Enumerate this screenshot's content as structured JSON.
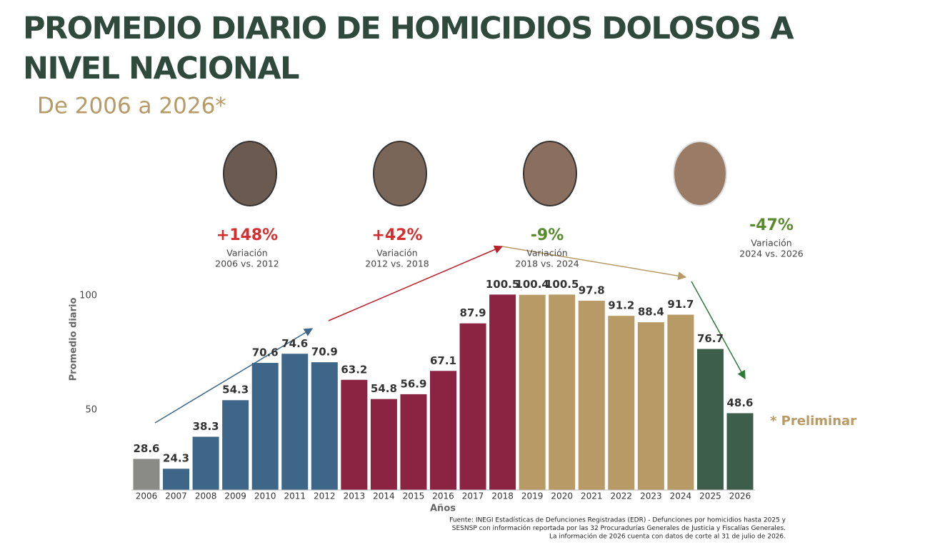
{
  "chart_data": {
    "type": "bar",
    "title": "PROMEDIO DIARIO DE HOMICIDIOS DOLOSOS A NIVEL NACIONAL",
    "subtitle": "De 2006 a 2026*",
    "y_label": "Promedio diario",
    "x_label": "Años",
    "categories": [
      "2006",
      "2007",
      "2008",
      "2009",
      "2010",
      "2011",
      "2012",
      "2013",
      "2014",
      "2015",
      "2016",
      "2017",
      "2018",
      "2019",
      "2020",
      "2021",
      "2022",
      "2023",
      "2024",
      "2025",
      "2026"
    ],
    "values": [
      28.6,
      24.3,
      38.3,
      54.3,
      70.6,
      74.6,
      70.9,
      63.2,
      54.8,
      56.9,
      67.1,
      87.9,
      100.5,
      100.4,
      100.5,
      97.8,
      91.2,
      88.4,
      91.7,
      76.7,
      48.6
    ],
    "colors": [
      "#8a8a86",
      "#3d6688",
      "#3d6688",
      "#3d6688",
      "#3d6688",
      "#3d6688",
      "#3d6688",
      "#8b2343",
      "#8b2343",
      "#8b2343",
      "#8b2343",
      "#8b2343",
      "#8b2343",
      "#b89a67",
      "#b89a67",
      "#b89a67",
      "#b89a67",
      "#b89a67",
      "#b89a67",
      "#3c5e4b",
      "#3c5e4b"
    ],
    "ylim": [
      15,
      105
    ],
    "yticks": [
      50,
      100
    ],
    "grid": false,
    "annotations": [
      {
        "text": "+148%",
        "label": "Variación",
        "period": "2006 vs. 2012",
        "color": "#d32f2f"
      },
      {
        "text": "+42%",
        "label": "Variación",
        "period": "2012 vs. 2018",
        "color": "#d32f2f"
      },
      {
        "text": "-9%",
        "label": "Variación",
        "period": "2018 vs. 2024",
        "color": "#5a8a2e"
      },
      {
        "text": "-47%",
        "label": "Variación",
        "period": "2024 vs. 2026",
        "color": "#5a8a2e"
      }
    ],
    "note": "* Preliminar",
    "source": [
      "Fuente: INEGI Estadísticas de Defunciones Registradas (EDR) - Defunciones por homicidios hasta 2025 y",
      "SESNSP con información reportada por las 32 Procuradurías Generales de Justicia y Fiscalías Generales.",
      "La información de 2026 cuenta con datos de corte al 31 de julio de 2026."
    ]
  }
}
